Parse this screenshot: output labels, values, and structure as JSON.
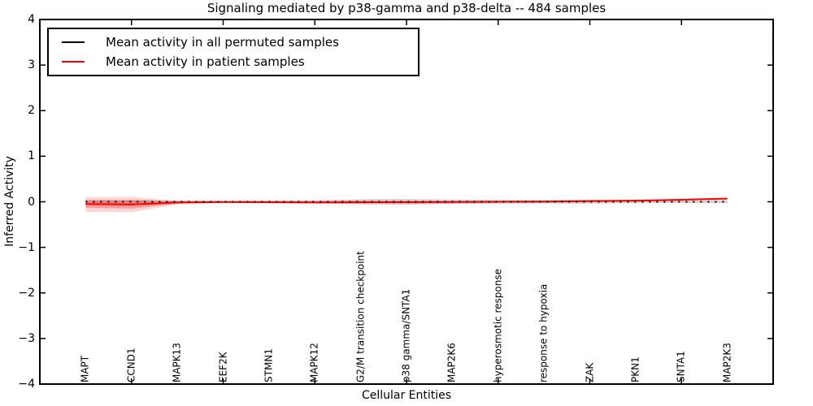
{
  "figure": {
    "title": "Signaling mediated by p38-gamma and p38-delta -- 484 samples",
    "xlabel": "Cellular Entities",
    "ylabel": "Inferred Activity"
  },
  "legend": {
    "entries": [
      {
        "label": "Mean activity in all permuted samples",
        "color": "#000000"
      },
      {
        "label": "Mean activity in patient samples",
        "color": "#ff0000"
      }
    ]
  },
  "chart_data": {
    "type": "line",
    "title": "Signaling mediated by p38-gamma and p38-delta -- 484 samples",
    "xlabel": "Cellular Entities",
    "ylabel": "Inferred Activity",
    "grid": false,
    "legend_position": "upper left",
    "ylim": [
      -4,
      4
    ],
    "yticks": [
      {
        "value": 4,
        "label": "4"
      },
      {
        "value": 3,
        "label": "3"
      },
      {
        "value": 2,
        "label": "2"
      },
      {
        "value": 1,
        "label": "1"
      },
      {
        "value": 0,
        "label": "0"
      },
      {
        "value": -1,
        "label": "−1"
      },
      {
        "value": -2,
        "label": "−2"
      },
      {
        "value": -3,
        "label": "−3"
      },
      {
        "value": -4,
        "label": "−4"
      }
    ],
    "categories": [
      "MAPT",
      "CCND1",
      "MAPK13",
      "EEF2K",
      "STMN1",
      "MAPK12",
      "G2/M transition checkpoint",
      "p38 gamma/SNTA1",
      "MAP2K6",
      "hyperosmotic response",
      "response to hypoxia",
      "ZAK",
      "PKN1",
      "SNTA1",
      "MAP2K3"
    ],
    "xtick_category_indices": [
      1,
      3,
      5,
      7,
      9,
      11,
      13
    ],
    "series": [
      {
        "name": "Mean activity in all permuted samples",
        "color": "#000000",
        "style": "dotted",
        "values": [
          0,
          0,
          0,
          0,
          0,
          0,
          0,
          0,
          0,
          0,
          0,
          0,
          0,
          0,
          0
        ]
      },
      {
        "name": "Mean activity in patient samples",
        "color": "#ff0000",
        "style": "solid",
        "values": [
          -0.05,
          -0.06,
          -0.015,
          -0.005,
          -0.01,
          -0.015,
          -0.01,
          -0.01,
          -0.005,
          0.0,
          0.005,
          0.015,
          0.025,
          0.045,
          0.07
        ]
      }
    ],
    "bands": [
      {
        "name": "permuted-samples-range",
        "color": "rgba(0,0,0,0.18)",
        "upper": [
          0.04,
          0.04,
          0.025,
          0.02,
          0.025,
          0.03,
          0.055,
          0.06,
          0.05,
          0.04,
          0.035,
          0.04,
          0.03,
          0.025,
          0.03
        ],
        "lower": [
          -0.04,
          -0.04,
          -0.025,
          -0.02,
          -0.025,
          -0.03,
          -0.055,
          -0.06,
          -0.05,
          -0.04,
          -0.035,
          -0.04,
          -0.03,
          -0.025,
          -0.03
        ]
      },
      {
        "name": "patient-samples-range-outer",
        "color": "rgba(255,0,0,0.16)",
        "upper": [
          0.1,
          0.11,
          0.02,
          0.015,
          0.02,
          0.02,
          0.03,
          0.03,
          0.02,
          0.02,
          0.025,
          0.04,
          0.05,
          0.06,
          0.09
        ],
        "lower": [
          -0.22,
          -0.23,
          -0.06,
          -0.03,
          -0.035,
          -0.04,
          -0.05,
          -0.05,
          -0.035,
          -0.025,
          -0.02,
          -0.01,
          0.0,
          0.02,
          0.04
        ]
      },
      {
        "name": "patient-samples-range-inner",
        "color": "rgba(255,0,0,0.28)",
        "upper": [
          0.03,
          0.035,
          0.005,
          0.0,
          0.005,
          0.005,
          0.01,
          0.01,
          0.005,
          0.01,
          0.015,
          0.025,
          0.035,
          0.05,
          0.08
        ],
        "lower": [
          -0.13,
          -0.15,
          -0.04,
          -0.02,
          -0.025,
          -0.03,
          -0.03,
          -0.03,
          -0.02,
          -0.015,
          -0.01,
          0.0,
          0.01,
          0.03,
          0.05
        ]
      }
    ]
  }
}
